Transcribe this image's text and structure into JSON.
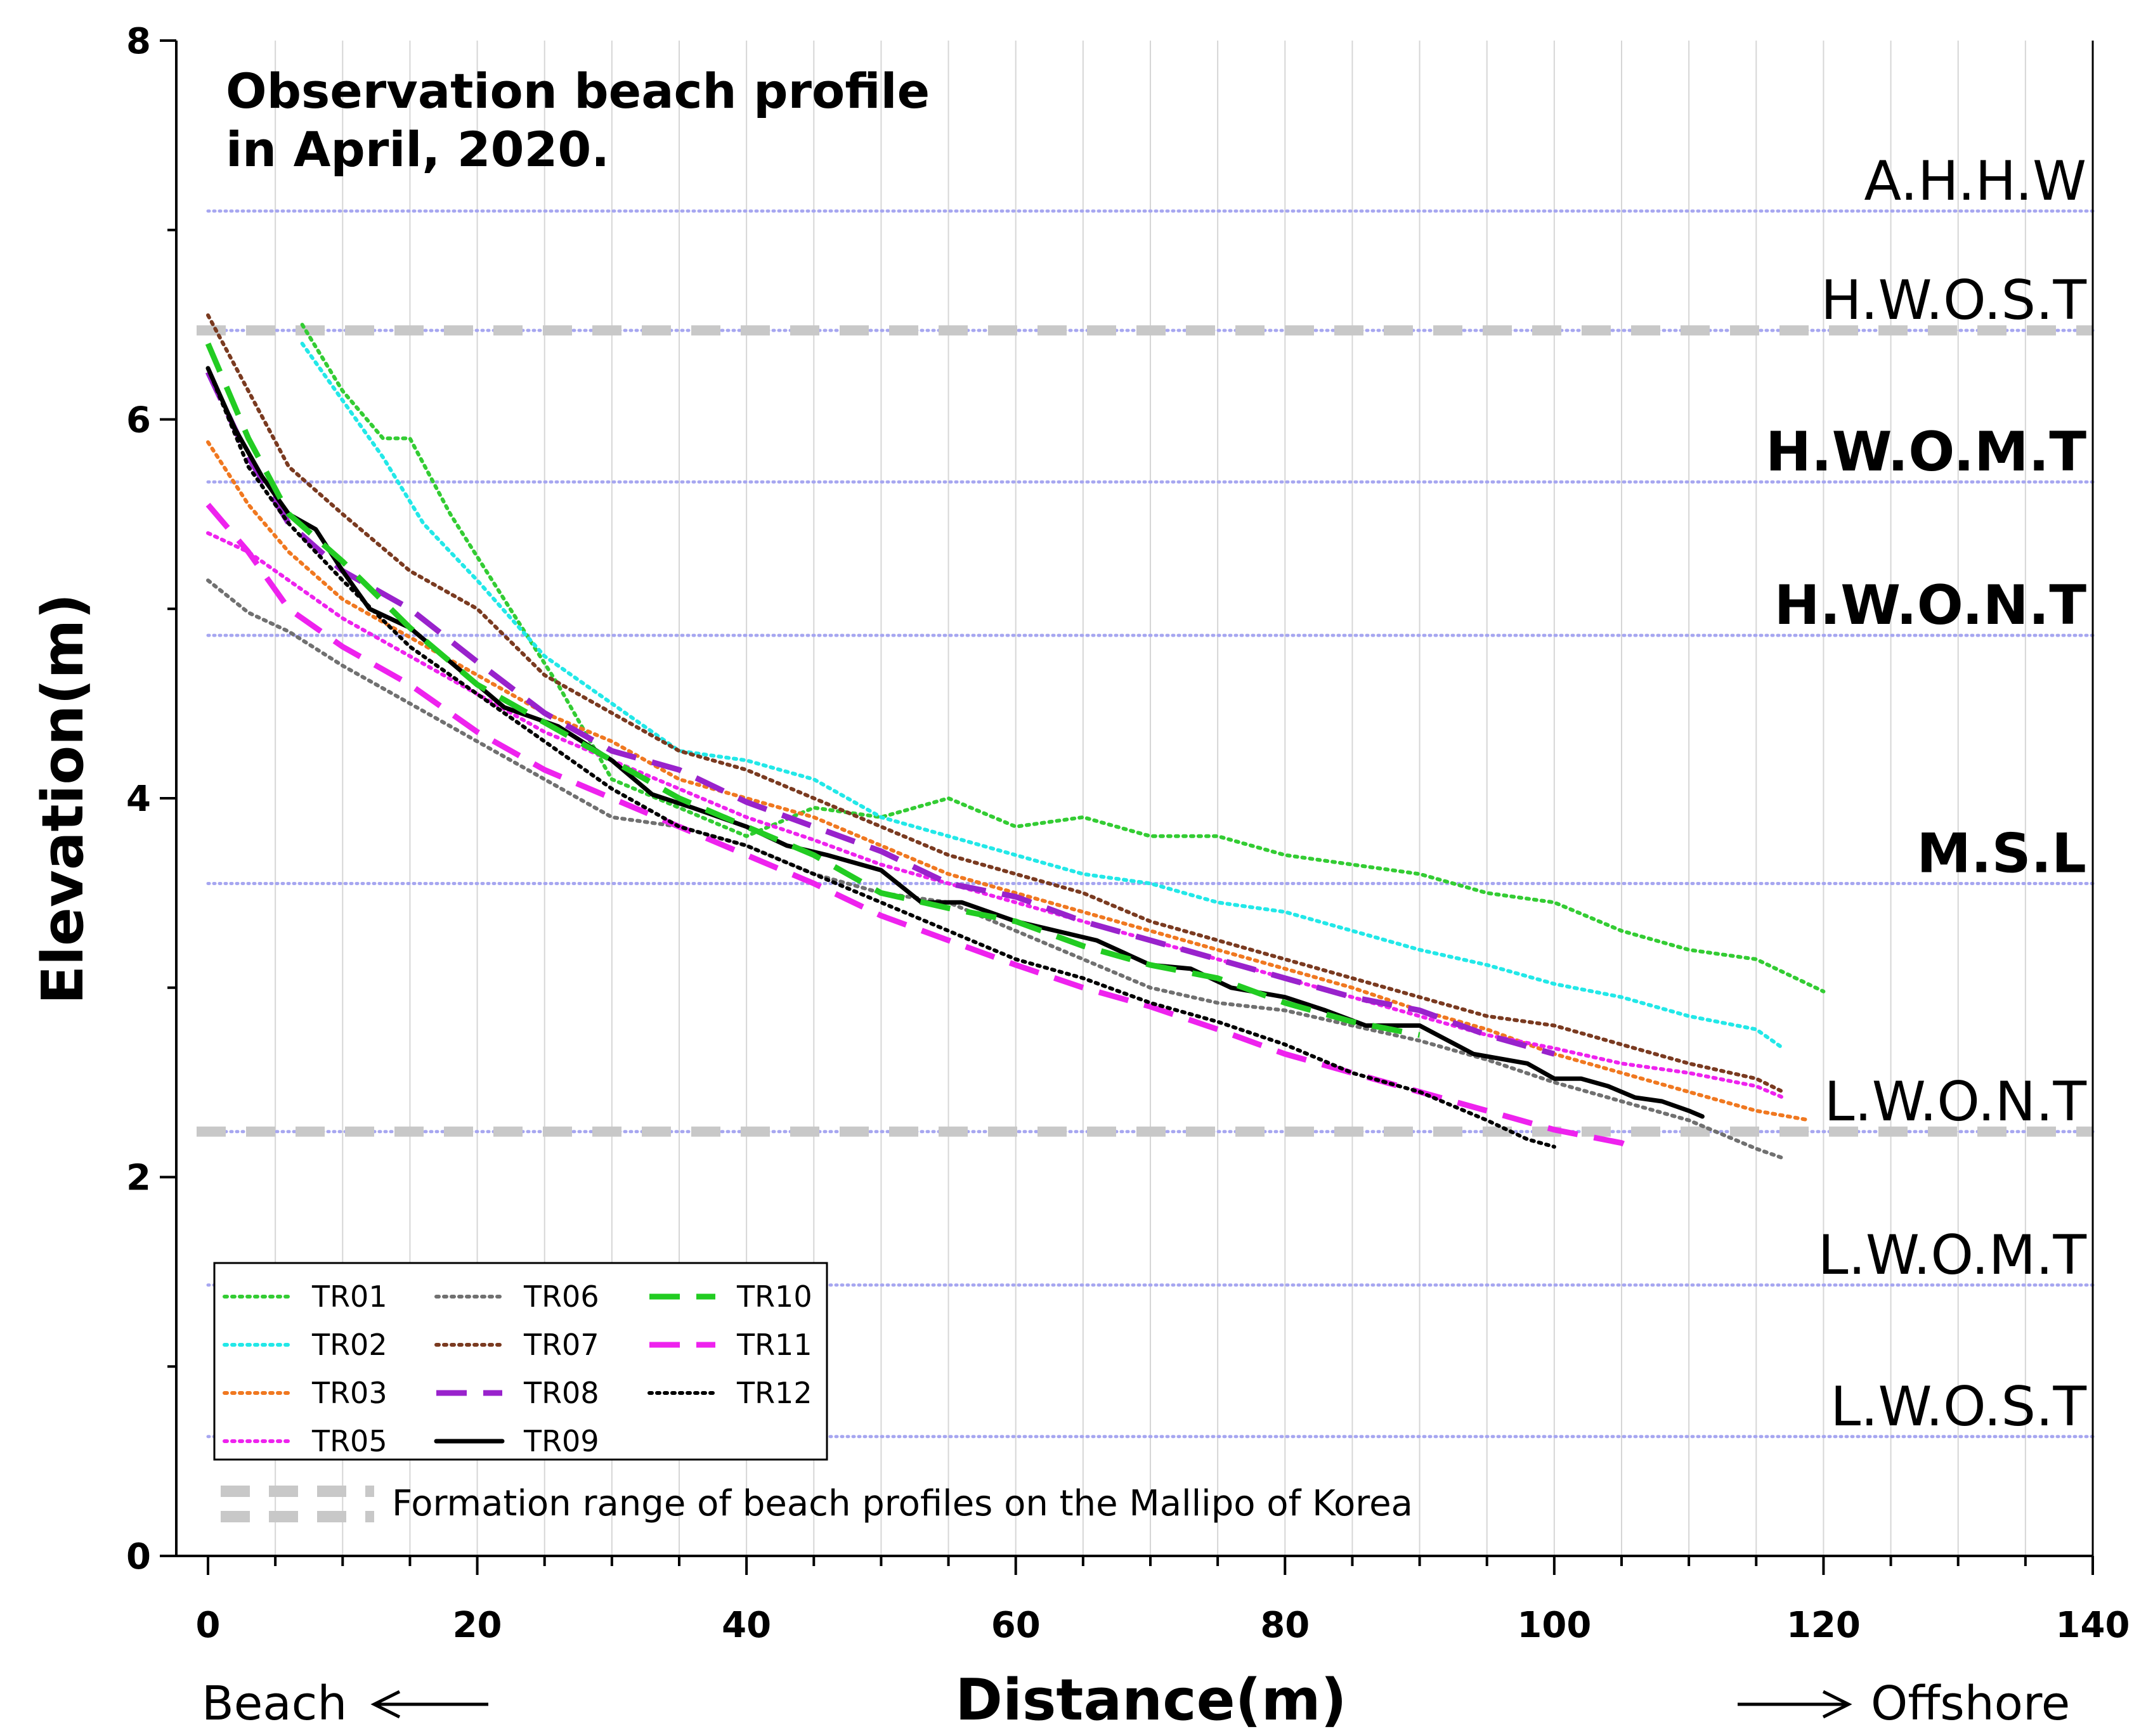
{
  "chart_data": {
    "type": "line",
    "title": "Observation beach profile\nin April, 2020.",
    "title_lines": [
      "Observation beach profile",
      "in April, 2020."
    ],
    "xlabel": "Distance(m)",
    "ylabel": "Elevation(m)",
    "xlim": [
      0,
      140
    ],
    "ylim": [
      0,
      8
    ],
    "x_ticks": [
      0,
      20,
      40,
      60,
      80,
      100,
      120,
      140
    ],
    "y_ticks": [
      0,
      2,
      4,
      6,
      8
    ],
    "x_tick_labels": [
      "0",
      "20",
      "40",
      "60",
      "80",
      "100",
      "120",
      "140"
    ],
    "y_tick_labels": [
      "0",
      "2",
      "4",
      "6",
      "8"
    ],
    "x_minor_step": 5,
    "y_minor_step": 1,
    "left_annotation": "Beach",
    "right_annotation": "Offshore",
    "reference_levels": [
      {
        "label": "A.H.H.W",
        "value": 7.1,
        "bold": false
      },
      {
        "label": "H.W.O.S.T",
        "value": 6.47,
        "bold": false
      },
      {
        "label": "H.W.O.M.T",
        "value": 5.67,
        "bold": true
      },
      {
        "label": "H.W.O.N.T",
        "value": 4.86,
        "bold": true
      },
      {
        "label": "M.S.L",
        "value": 3.55,
        "bold": true
      },
      {
        "label": "L.W.O.N.T",
        "value": 2.24,
        "bold": false
      },
      {
        "label": "L.W.O.M.T",
        "value": 1.43,
        "bold": false
      },
      {
        "label": "L.W.O.S.T",
        "value": 0.63,
        "bold": false
      }
    ],
    "formation_range": {
      "label": "Formation range of beach profiles on the Mallipo of Korea",
      "upper": 6.47,
      "lower": 2.24,
      "color": "#c8c8c8"
    },
    "series": [
      {
        "name": "TR01",
        "color": "#33cc33",
        "style": "dotted",
        "x": [
          7,
          10,
          13,
          15,
          18,
          22,
          26,
          30,
          35,
          40,
          45,
          50,
          55,
          60,
          65,
          70,
          75,
          80,
          85,
          90,
          95,
          100,
          105,
          110,
          115,
          120
        ],
        "y": [
          6.5,
          6.15,
          5.9,
          5.9,
          5.5,
          5.05,
          4.6,
          4.1,
          3.95,
          3.8,
          3.95,
          3.9,
          4.0,
          3.85,
          3.9,
          3.8,
          3.8,
          3.7,
          3.65,
          3.6,
          3.5,
          3.45,
          3.3,
          3.2,
          3.15,
          2.98
        ]
      },
      {
        "name": "TR02",
        "color": "#22e8e8",
        "style": "dotted",
        "x": [
          7,
          10,
          13,
          16,
          20,
          25,
          30,
          35,
          40,
          45,
          50,
          55,
          60,
          65,
          70,
          75,
          80,
          85,
          90,
          95,
          100,
          105,
          110,
          115,
          117
        ],
        "y": [
          6.4,
          6.1,
          5.8,
          5.45,
          5.15,
          4.75,
          4.5,
          4.25,
          4.2,
          4.1,
          3.9,
          3.8,
          3.7,
          3.6,
          3.55,
          3.45,
          3.4,
          3.3,
          3.2,
          3.12,
          3.02,
          2.95,
          2.85,
          2.78,
          2.68
        ]
      },
      {
        "name": "TR03",
        "color": "#f07820",
        "style": "dotted",
        "x": [
          0,
          3,
          6,
          10,
          15,
          20,
          25,
          30,
          35,
          40,
          45,
          50,
          55,
          60,
          65,
          70,
          75,
          80,
          85,
          90,
          95,
          100,
          105,
          110,
          115,
          119
        ],
        "y": [
          5.88,
          5.55,
          5.3,
          5.05,
          4.85,
          4.65,
          4.45,
          4.3,
          4.1,
          4.0,
          3.9,
          3.75,
          3.6,
          3.5,
          3.4,
          3.3,
          3.2,
          3.1,
          3.0,
          2.88,
          2.78,
          2.65,
          2.55,
          2.45,
          2.35,
          2.3
        ]
      },
      {
        "name": "TR05",
        "color": "#ee22ee",
        "style": "dotted",
        "x": [
          0,
          3,
          6,
          10,
          15,
          20,
          25,
          30,
          35,
          40,
          45,
          50,
          55,
          60,
          65,
          70,
          75,
          80,
          85,
          90,
          95,
          100,
          105,
          110,
          115,
          117
        ],
        "y": [
          5.4,
          5.3,
          5.15,
          4.95,
          4.75,
          4.55,
          4.35,
          4.2,
          4.05,
          3.9,
          3.78,
          3.65,
          3.55,
          3.45,
          3.35,
          3.25,
          3.15,
          3.05,
          2.95,
          2.85,
          2.75,
          2.68,
          2.6,
          2.55,
          2.48,
          2.42
        ]
      },
      {
        "name": "TR06",
        "color": "#707070",
        "style": "dotted",
        "x": [
          0,
          3,
          6,
          10,
          15,
          20,
          25,
          30,
          35,
          40,
          45,
          50,
          55,
          60,
          65,
          70,
          75,
          80,
          85,
          90,
          95,
          100,
          105,
          110,
          115,
          117
        ],
        "y": [
          5.15,
          4.98,
          4.88,
          4.7,
          4.5,
          4.3,
          4.1,
          3.9,
          3.85,
          3.75,
          3.6,
          3.5,
          3.45,
          3.3,
          3.15,
          3.0,
          2.92,
          2.88,
          2.8,
          2.72,
          2.62,
          2.5,
          2.4,
          2.3,
          2.15,
          2.1
        ]
      },
      {
        "name": "TR07",
        "color": "#7a3a20",
        "style": "dotted",
        "x": [
          0,
          3,
          6,
          10,
          15,
          20,
          25,
          30,
          35,
          40,
          45,
          50,
          55,
          60,
          65,
          70,
          75,
          80,
          85,
          90,
          95,
          100,
          105,
          110,
          115,
          117
        ],
        "y": [
          6.55,
          6.15,
          5.75,
          5.5,
          5.2,
          5.0,
          4.65,
          4.45,
          4.25,
          4.15,
          4.0,
          3.85,
          3.7,
          3.6,
          3.5,
          3.35,
          3.25,
          3.15,
          3.05,
          2.95,
          2.85,
          2.8,
          2.7,
          2.6,
          2.52,
          2.45
        ]
      },
      {
        "name": "TR08",
        "color": "#9922cc",
        "style": "longdash",
        "x": [
          0,
          3,
          6,
          10,
          15,
          20,
          25,
          30,
          35,
          40,
          45,
          50,
          55,
          60,
          65,
          70,
          75,
          80,
          85,
          90,
          95,
          100
        ],
        "y": [
          6.25,
          5.8,
          5.45,
          5.2,
          5.0,
          4.72,
          4.45,
          4.25,
          4.15,
          3.98,
          3.85,
          3.72,
          3.55,
          3.48,
          3.35,
          3.25,
          3.15,
          3.05,
          2.95,
          2.88,
          2.75,
          2.65
        ]
      },
      {
        "name": "TR09",
        "color": "#000000",
        "style": "solid",
        "x": [
          0,
          2,
          4,
          6,
          8,
          10,
          12,
          15,
          18,
          22,
          26,
          30,
          33,
          36,
          40,
          43,
          46,
          50,
          53,
          56,
          60,
          63,
          66,
          70,
          73,
          76,
          80,
          83,
          86,
          90,
          94,
          98,
          100,
          102,
          104,
          106,
          108,
          110,
          111
        ],
        "y": [
          6.27,
          5.95,
          5.7,
          5.5,
          5.42,
          5.2,
          5.0,
          4.9,
          4.72,
          4.48,
          4.38,
          4.2,
          4.02,
          3.95,
          3.85,
          3.75,
          3.7,
          3.62,
          3.45,
          3.45,
          3.35,
          3.3,
          3.25,
          3.12,
          3.1,
          3.0,
          2.95,
          2.88,
          2.8,
          2.8,
          2.65,
          2.6,
          2.52,
          2.52,
          2.48,
          2.42,
          2.4,
          2.35,
          2.32
        ]
      },
      {
        "name": "TR10",
        "color": "#22cc22",
        "style": "longdash",
        "x": [
          0,
          3,
          6,
          10,
          15,
          20,
          25,
          30,
          35,
          40,
          45,
          50,
          55,
          60,
          65,
          70,
          75,
          80,
          85,
          90
        ],
        "y": [
          6.4,
          5.9,
          5.5,
          5.25,
          4.9,
          4.6,
          4.4,
          4.2,
          4.0,
          3.85,
          3.7,
          3.5,
          3.42,
          3.35,
          3.22,
          3.12,
          3.05,
          2.92,
          2.82,
          2.75
        ]
      },
      {
        "name": "TR11",
        "color": "#ee22ee",
        "style": "longdash",
        "x": [
          0,
          3,
          6,
          10,
          15,
          20,
          25,
          30,
          35,
          40,
          45,
          50,
          55,
          60,
          65,
          70,
          75,
          80,
          85,
          90,
          95,
          100,
          105,
          106
        ],
        "y": [
          5.55,
          5.3,
          5.0,
          4.8,
          4.6,
          4.35,
          4.15,
          4.0,
          3.85,
          3.7,
          3.55,
          3.38,
          3.25,
          3.12,
          3.0,
          2.9,
          2.78,
          2.65,
          2.55,
          2.45,
          2.35,
          2.25,
          2.18,
          2.15
        ]
      },
      {
        "name": "TR12",
        "color": "#000000",
        "style": "dotted",
        "x": [
          0,
          3,
          6,
          10,
          15,
          20,
          25,
          30,
          35,
          40,
          45,
          50,
          55,
          60,
          65,
          70,
          75,
          80,
          85,
          90,
          95,
          98,
          100
        ],
        "y": [
          6.27,
          5.75,
          5.45,
          5.15,
          4.8,
          4.55,
          4.3,
          4.05,
          3.85,
          3.75,
          3.6,
          3.45,
          3.3,
          3.15,
          3.05,
          2.92,
          2.82,
          2.7,
          2.55,
          2.45,
          2.3,
          2.2,
          2.16
        ]
      }
    ]
  },
  "legend": {
    "columns": [
      [
        "TR01",
        "TR02",
        "TR03",
        "TR05"
      ],
      [
        "TR06",
        "TR07",
        "TR08",
        "TR09"
      ],
      [
        "TR10",
        "TR11",
        "TR12"
      ]
    ]
  },
  "colors": {
    "reference_line": "#a6a6f0",
    "grid_line": "#d6d6d6",
    "formation": "#c8c8c8"
  }
}
